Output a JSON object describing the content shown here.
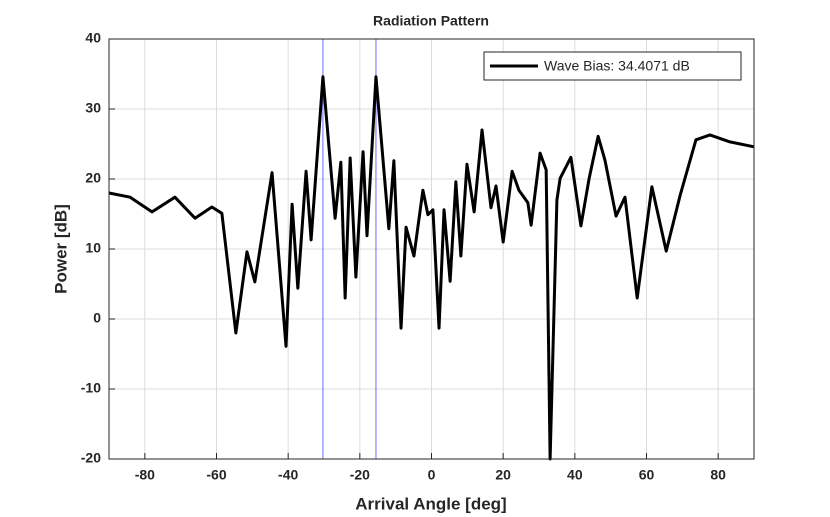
{
  "chart_data": {
    "type": "line",
    "title": "Radiation Pattern",
    "xlabel": "Arrival Angle [deg]",
    "ylabel": "Power [dB]",
    "x": [
      -90,
      -84.1,
      -78,
      -71.6,
      -66,
      -61.3,
      -58.5,
      -54.6,
      -51.5,
      -49.3,
      -44.5,
      -40.6,
      -38.9,
      -37.3,
      -35,
      -33.6,
      -30.3,
      -26.9,
      -25.3,
      -24.1,
      -22.7,
      -21.1,
      -19.1,
      -18,
      -15.5,
      -11.9,
      -10.5,
      -8.5,
      -7.1,
      -4.9,
      -2.4,
      -1,
      0.4,
      2.1,
      3.5,
      5.2,
      6.8,
      8.2,
      9.9,
      11.9,
      14.1,
      16.6,
      18,
      20,
      22.5,
      24.4,
      26.9,
      27.8,
      30.3,
      32,
      33.1,
      35,
      35.9,
      38.9,
      41.7,
      44,
      46.5,
      48.4,
      51.5,
      54,
      57.4,
      61.5,
      65.5,
      69.4,
      73.8,
      77.7,
      83.3,
      90
    ],
    "series": [
      {
        "name": "Wave Bias: 34.4071 dB",
        "color": "#000000",
        "values": [
          18,
          17.4,
          15.3,
          17.4,
          14.4,
          16,
          15.1,
          -2,
          9.6,
          5.3,
          20.9,
          -3.9,
          16.4,
          4.4,
          21.1,
          11.3,
          34.6,
          14.4,
          22.4,
          3,
          23,
          6,
          23.9,
          11.9,
          34.6,
          12.9,
          22.6,
          -1.3,
          13.1,
          9,
          18.4,
          14.9,
          15.6,
          -1.3,
          15.6,
          5.4,
          19.6,
          9,
          22.1,
          15.3,
          27,
          15.9,
          19,
          11,
          21.1,
          18.4,
          16.6,
          13.4,
          23.7,
          21.3,
          -20,
          17,
          20.1,
          23.1,
          13.3,
          20.1,
          26.1,
          22.7,
          14.7,
          17.4,
          3,
          18.9,
          9.7,
          17.7,
          25.6,
          26.3,
          25.3,
          24.6
        ]
      }
    ],
    "vlines": [
      -30.3,
      -15.5
    ],
    "vline_color": "#6a6aff",
    "xlim": [
      -90,
      90
    ],
    "xticks": [
      -80,
      -60,
      -40,
      -20,
      0,
      20,
      40,
      60,
      80
    ],
    "ylim": [
      -20,
      40
    ],
    "yticks": [
      -20,
      -10,
      0,
      10,
      20,
      30,
      40
    ],
    "grid": true,
    "legend": "northeast"
  }
}
